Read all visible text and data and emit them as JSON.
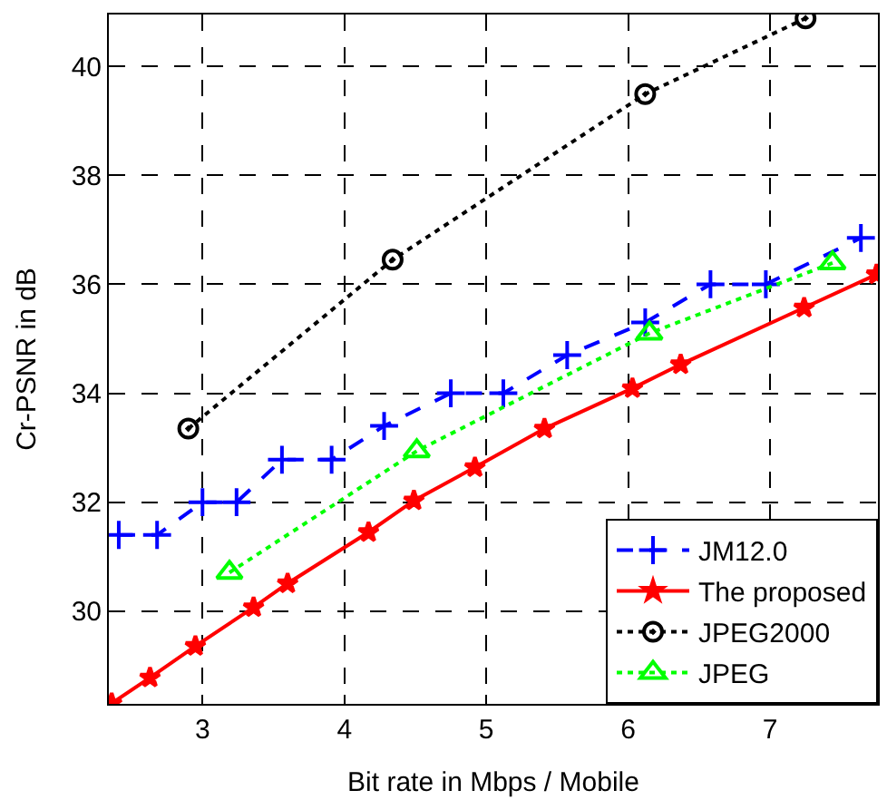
{
  "chart_data": {
    "type": "line",
    "xlabel": "Bit rate in Mbps / Mobile",
    "ylabel": "Cr-PSNR in dB",
    "xlim": [
      2.34,
      7.76
    ],
    "ylim": [
      28.3,
      40.95
    ],
    "xticks": [
      3,
      4,
      5,
      6,
      7
    ],
    "yticks": [
      30,
      32,
      34,
      36,
      38,
      40
    ],
    "grid": true,
    "legend": "bottom right",
    "series": [
      {
        "name": "JM12.0",
        "color": "#0000ff",
        "marker": "cross",
        "line_style": "dashed",
        "x": [
          2.41,
          2.68,
          3.0,
          3.24,
          3.56,
          3.91,
          4.28,
          4.75,
          5.12,
          5.57,
          6.12,
          6.58,
          6.97,
          7.64
        ],
        "values": [
          31.4,
          31.4,
          32.0,
          32.0,
          32.78,
          32.78,
          33.4,
          34.0,
          34.0,
          34.7,
          35.3,
          36.0,
          36.0,
          36.85
        ]
      },
      {
        "name": "The proposed",
        "color": "#ff0000",
        "marker": "star",
        "line_style": "solid",
        "x": [
          2.36,
          2.63,
          2.95,
          3.36,
          3.6,
          4.17,
          4.49,
          4.92,
          5.41,
          6.03,
          6.37,
          7.24,
          7.75
        ],
        "values": [
          28.31,
          28.78,
          29.36,
          30.07,
          30.51,
          31.45,
          32.03,
          32.64,
          33.35,
          34.09,
          34.53,
          35.57,
          36.18
        ]
      },
      {
        "name": "JPEG2000",
        "color": "#000000",
        "marker": "circle",
        "line_style": "dotted",
        "x": [
          2.9,
          4.34,
          6.12,
          7.25
        ],
        "values": [
          33.35,
          36.45,
          39.49,
          40.88
        ]
      },
      {
        "name": "JPEG",
        "color": "#00ff00",
        "marker": "triangle",
        "line_style": "dotted",
        "x": [
          3.19,
          4.51,
          6.15,
          7.44
        ],
        "values": [
          30.71,
          32.94,
          35.1,
          36.39
        ]
      }
    ]
  }
}
